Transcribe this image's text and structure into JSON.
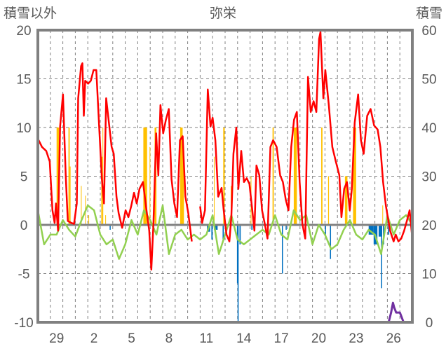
{
  "chart_data": {
    "type": "line",
    "title": "弥栄",
    "left_axis_label": "積雪以外",
    "right_axis_label": "積雪",
    "ylim": [
      -10,
      20
    ],
    "y2lim": [
      0,
      60
    ],
    "yticks": [
      "20",
      "15",
      "10",
      "5",
      "0",
      "-5",
      "-10"
    ],
    "y2ticks": [
      "60",
      "50",
      "40",
      "30",
      "20",
      "10",
      "0"
    ],
    "ytick_values": [
      20,
      15,
      10,
      5,
      0,
      -5,
      -10
    ],
    "y2tick_values": [
      60,
      50,
      40,
      30,
      20,
      10,
      0
    ],
    "x_days_span": 30,
    "xticks": [
      {
        "label": "29",
        "day": 1
      },
      {
        "label": "2",
        "day": 4
      },
      {
        "label": "5",
        "day": 7
      },
      {
        "label": "8",
        "day": 10
      },
      {
        "label": "11",
        "day": 13
      },
      {
        "label": "14",
        "day": 16
      },
      {
        "label": "17",
        "day": 19
      },
      {
        "label": "20",
        "day": 22
      },
      {
        "label": "23",
        "day": 25
      },
      {
        "label": "26",
        "day": 28
      }
    ],
    "grid": true,
    "colors": {
      "red": "#ff0000",
      "green": "#92d050",
      "yellow": "#ffc000",
      "blue": "#0070c0",
      "purple": "#7030a0",
      "frame": "#808080",
      "grid": "#808080"
    },
    "red_series": [
      [
        0.06,
        8.7
      ],
      [
        0.33,
        8.0
      ],
      [
        0.67,
        7.6
      ],
      [
        0.95,
        6.5
      ],
      [
        1.17,
        1.5
      ],
      [
        1.34,
        0.2
      ],
      [
        1.45,
        2.2
      ],
      [
        1.62,
        -0.6
      ],
      [
        1.78,
        10.1
      ],
      [
        2.01,
        13.4
      ],
      [
        2.23,
        5.1
      ],
      [
        2.4,
        0.4
      ],
      [
        2.68,
        0.2
      ],
      [
        2.9,
        0.1
      ],
      [
        3.12,
        2.2
      ],
      [
        3.23,
        13
      ],
      [
        3.46,
        16.3
      ],
      [
        3.57,
        16.6
      ],
      [
        3.68,
        11.2
      ],
      [
        3.79,
        14.8
      ],
      [
        4.02,
        14.5
      ],
      [
        4.24,
        14.8
      ],
      [
        4.46,
        15.9
      ],
      [
        4.68,
        15.9
      ],
      [
        4.91,
        10.1
      ],
      [
        5.13,
        4.7
      ],
      [
        5.3,
        2.2
      ],
      [
        5.47,
        13
      ],
      [
        5.69,
        10.5
      ],
      [
        5.91,
        8
      ],
      [
        6.08,
        7.3
      ],
      [
        6.3,
        2.9
      ],
      [
        6.47,
        1.2
      ],
      [
        6.75,
        -0.3
      ],
      [
        7.03,
        1.5
      ],
      [
        7.25,
        0.8
      ],
      [
        7.47,
        1.9
      ],
      [
        7.7,
        3.3
      ],
      [
        7.92,
        2.2
      ],
      [
        8.14,
        3.7
      ],
      [
        8.42,
        4.4
      ],
      [
        8.7,
        1.5
      ],
      [
        8.92,
        -0.6
      ],
      [
        9.09,
        -4.6
      ],
      [
        9.26,
        0.1
      ],
      [
        9.48,
        9.4
      ],
      [
        9.65,
        5.1
      ],
      [
        9.82,
        12.3
      ],
      [
        10.04,
        9.4
      ],
      [
        10.26,
        10.8
      ],
      [
        10.49,
        11.9
      ],
      [
        10.71,
        4.7
      ],
      [
        10.93,
        2.2
      ],
      [
        11.15,
        0.8
      ],
      [
        11.38,
        8.7
      ],
      [
        11.6,
        9.1
      ],
      [
        11.82,
        2.9
      ],
      [
        12.05,
        1.2
      ],
      [
        12.33,
        -1.7
      ],
      null,
      [
        13.0,
        1.9
      ],
      [
        13.16,
        0.2
      ],
      [
        13.39,
        1.5
      ],
      [
        13.61,
        13.9
      ],
      [
        13.83,
        10.1
      ],
      [
        14.0,
        11.0
      ],
      [
        14.22,
        8.7
      ],
      [
        14.45,
        2.9
      ],
      [
        14.72,
        3.8
      ],
      [
        14.89,
        1.5
      ],
      [
        15.11,
        -1.0
      ],
      [
        15.34,
        -1.7
      ],
      [
        15.5,
        0.8
      ],
      [
        15.67,
        7.3
      ],
      [
        15.9,
        10.0
      ],
      [
        16.06,
        3.7
      ],
      [
        16.29,
        7.6
      ],
      [
        16.51,
        4.4
      ],
      [
        16.73,
        4.8
      ],
      [
        16.95,
        4.2
      ],
      [
        17.18,
        1.5
      ],
      [
        17.35,
        -0.6
      ],
      [
        17.51,
        6.1
      ],
      [
        17.74,
        5.1
      ],
      [
        17.96,
        1.5
      ],
      [
        18.18,
        0.1
      ],
      [
        18.4,
        -1.4
      ],
      [
        18.63,
        8.0
      ],
      [
        18.85,
        8.7
      ],
      [
        19.13,
        8.0
      ],
      [
        19.41,
        5.1
      ],
      [
        19.63,
        4.4
      ],
      [
        19.86,
        2.6
      ],
      [
        20.08,
        1.5
      ],
      [
        20.3,
        8.0
      ],
      [
        20.52,
        10.8
      ],
      [
        20.75,
        11.6
      ],
      [
        20.97,
        4.4
      ],
      [
        21.19,
        0.1
      ],
      [
        21.42,
        -1.4
      ],
      [
        21.64,
        15.2
      ],
      [
        21.86,
        11.6
      ],
      [
        22.09,
        12.7
      ],
      [
        22.31,
        11.6
      ],
      [
        22.53,
        19.1
      ],
      [
        22.64,
        19.8
      ],
      [
        22.87,
        13
      ],
      [
        23.03,
        15.9
      ],
      [
        23.31,
        12.3
      ],
      [
        23.59,
        8.0
      ],
      [
        23.87,
        6.5
      ],
      [
        24.15,
        5.1
      ],
      [
        24.32,
        0.8
      ],
      [
        24.54,
        3.7
      ],
      [
        24.76,
        4.4
      ],
      [
        24.99,
        1.5
      ],
      [
        25.15,
        3.7
      ],
      [
        25.38,
        10.5
      ],
      [
        25.66,
        13.4
      ],
      [
        25.88,
        8.7
      ],
      [
        26.1,
        7.3
      ],
      [
        26.38,
        11.2
      ],
      [
        26.66,
        11.9
      ],
      [
        26.94,
        10.2
      ],
      [
        27.22,
        9.8
      ],
      [
        27.44,
        8.0
      ],
      [
        27.66,
        4.4
      ],
      [
        27.89,
        1.9
      ],
      [
        28.22,
        -0.6
      ],
      [
        28.5,
        -1.7
      ],
      [
        28.67,
        -1.0
      ],
      [
        28.89,
        -1.7
      ],
      [
        29.11,
        -1.4
      ],
      [
        29.34,
        -0.6
      ],
      [
        29.56,
        0.4
      ],
      [
        29.78,
        1.5
      ],
      [
        30,
        -1.4
      ]
    ],
    "green_series_step_days": 0.5,
    "green_series": [
      1.5,
      -2,
      -1,
      -1,
      0.5,
      -0.5,
      -1.2,
      0.5,
      2,
      1.5,
      -1,
      -2,
      -1.5,
      -3.5,
      -2,
      0.5,
      -1,
      1.5,
      0.5,
      -1,
      2,
      -3,
      -1,
      -0.5,
      -1.5,
      -1,
      -1.5,
      -1,
      1,
      -3,
      -1,
      1,
      -1.5,
      -2,
      -1.5,
      -1,
      -0.5,
      -1,
      1,
      -1,
      -1.5,
      1.5,
      0.5,
      1,
      -2,
      0,
      -1,
      -2.5,
      -2,
      -0.5,
      0.5,
      -1,
      -1.5,
      -0.5,
      -1,
      -3,
      1,
      -1,
      0.5,
      1,
      0
    ],
    "yellow_bars": [
      [
        1.5,
        1.7,
        10
      ],
      [
        2.45,
        2.55,
        10
      ],
      [
        2.55,
        2.62,
        6
      ],
      [
        3.45,
        3.5,
        4
      ],
      [
        3.78,
        3.82,
        3
      ],
      [
        4.05,
        4.08,
        1
      ],
      [
        5.08,
        5.18,
        7
      ],
      [
        5.18,
        5.22,
        10
      ],
      [
        5.4,
        5.44,
        1
      ],
      [
        8.45,
        8.75,
        10
      ],
      [
        8.95,
        9.0,
        8
      ],
      [
        9.35,
        9.5,
        10
      ],
      [
        11.4,
        11.6,
        10
      ],
      [
        11.6,
        11.7,
        8
      ],
      [
        14.1,
        14.14,
        7
      ],
      [
        14.85,
        14.97,
        10
      ],
      [
        15.45,
        15.5,
        4
      ],
      [
        17.05,
        17.1,
        5
      ],
      [
        18.8,
        18.9,
        10
      ],
      [
        20.5,
        20.75,
        10
      ],
      [
        22.7,
        22.8,
        10
      ],
      [
        23.25,
        23.32,
        5
      ],
      [
        24.6,
        24.8,
        5
      ],
      [
        25.25,
        25.5,
        10
      ],
      [
        27.6,
        27.65,
        2
      ]
    ],
    "blue_bars": [
      [
        5.75,
        5.78,
        -0.5
      ],
      [
        13.55,
        13.8,
        -0.7
      ],
      [
        13.9,
        14.0,
        -1.5
      ],
      [
        14.1,
        14.4,
        -0.5
      ],
      [
        14.8,
        14.9,
        -1.5
      ],
      [
        15.95,
        16.0,
        -6
      ],
      [
        16.0,
        16.04,
        -10
      ],
      [
        16.15,
        16.25,
        -2
      ],
      [
        17.1,
        17.2,
        -0.5
      ],
      [
        19.55,
        19.6,
        -5
      ],
      [
        19.85,
        19.9,
        -0.5
      ],
      [
        23.0,
        23.05,
        -1
      ],
      [
        23.4,
        23.45,
        -3.5
      ],
      [
        26.5,
        26.9,
        -1
      ],
      [
        26.9,
        27.2,
        -2
      ],
      [
        27.3,
        27.5,
        -1.2
      ],
      [
        27.5,
        27.55,
        -6.5
      ],
      [
        27.65,
        27.75,
        -2
      ],
      [
        28.05,
        28.15,
        -1
      ]
    ],
    "purple_snow": [
      [
        0,
        0
      ],
      [
        12.3,
        0
      ],
      null,
      [
        12.8,
        0
      ],
      [
        28.1,
        0
      ],
      [
        28.3,
        2
      ],
      [
        28.45,
        4
      ],
      [
        28.55,
        3
      ],
      [
        28.7,
        2
      ],
      [
        29.0,
        2
      ],
      [
        29.15,
        1
      ],
      [
        29.3,
        0
      ],
      [
        30,
        0
      ]
    ]
  }
}
